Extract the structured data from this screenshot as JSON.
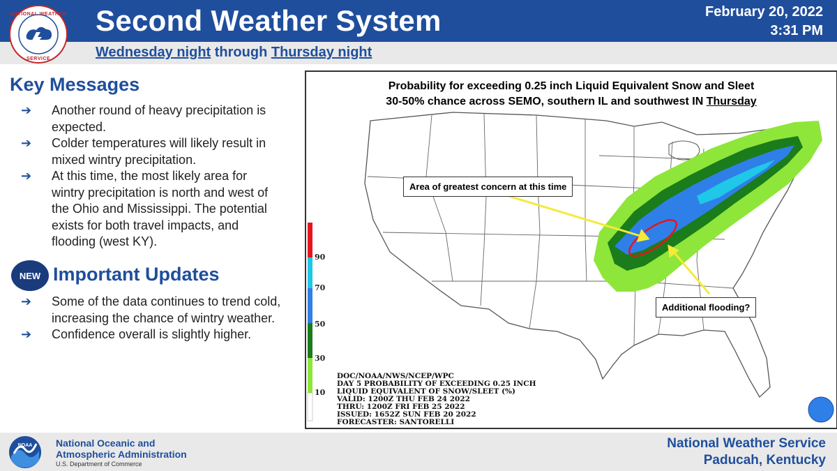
{
  "header": {
    "title": "Second Weather System",
    "date": "February 20, 2022",
    "time": "3:31 PM",
    "subtitle_part1": "Wednesday night",
    "subtitle_mid": " through ",
    "subtitle_part2": "Thursday night",
    "logo_text": "NATIONAL WEATHER SERVICE"
  },
  "key_messages": {
    "title": "Key Messages",
    "bullet_symbol": "➔",
    "items": [
      "Another round of heavy precipitation is expected.",
      "Colder temperatures will likely result in mixed wintry precipitation.",
      "At this time, the most likely area for wintry precipitation is north and west of the Ohio and Mississippi. The potential exists for both travel impacts, and flooding (west KY)."
    ]
  },
  "updates": {
    "badge": "NEW",
    "title": "Important Updates",
    "items": [
      "Some of the data continues to trend cold, increasing the chance of wintry weather.",
      "Confidence overall is slightly higher."
    ]
  },
  "map": {
    "title_line1": "Probability for exceeding 0.25 inch Liquid Equivalent Snow and Sleet",
    "title_line2_prefix": "30-50% chance across SEMO, southern IL and southwest IN ",
    "title_line2_underlined": "Thursday",
    "callout_concern": "Area of greatest concern at this time",
    "callout_flooding": "Additional flooding?",
    "legend": {
      "labels": [
        "90",
        "70",
        "50",
        "30",
        "10"
      ],
      "colors": [
        "#e8141c",
        "#1ec8e6",
        "#2f7fe8",
        "#1b7c1b",
        "#8fe63a"
      ]
    },
    "metadata": [
      "DOC/NOAA/NWS/NCEP/WPC",
      "DAY 5 PROBABILITY OF EXCEEDING 0.25 INCH",
      "LIQUID EQUIVALENT OF SNOW/SLEET (%)",
      "VALID: 1200Z THU FEB 24 2022",
      "THRU: 1200Z FRI FEB 25 2022",
      "ISSUED: 1652Z SUN FEB 20 2022",
      "FORECASTER: SANTORELLI"
    ],
    "colors": {
      "light_green": "#8fe63a",
      "dark_green": "#1b7c1b",
      "blue": "#2f7fe8",
      "cyan": "#1ec8e6",
      "highlight": "#e8141c",
      "arrow": "#f4ea3a"
    }
  },
  "footer": {
    "noaa_line1": "National Oceanic and",
    "noaa_line2": "Atmospheric Administration",
    "noaa_dept": "U.S. Department of Commerce",
    "office_line1": "National Weather Service",
    "office_line2": "Paducah, Kentucky",
    "noaa_logo_text": "NOAA"
  }
}
